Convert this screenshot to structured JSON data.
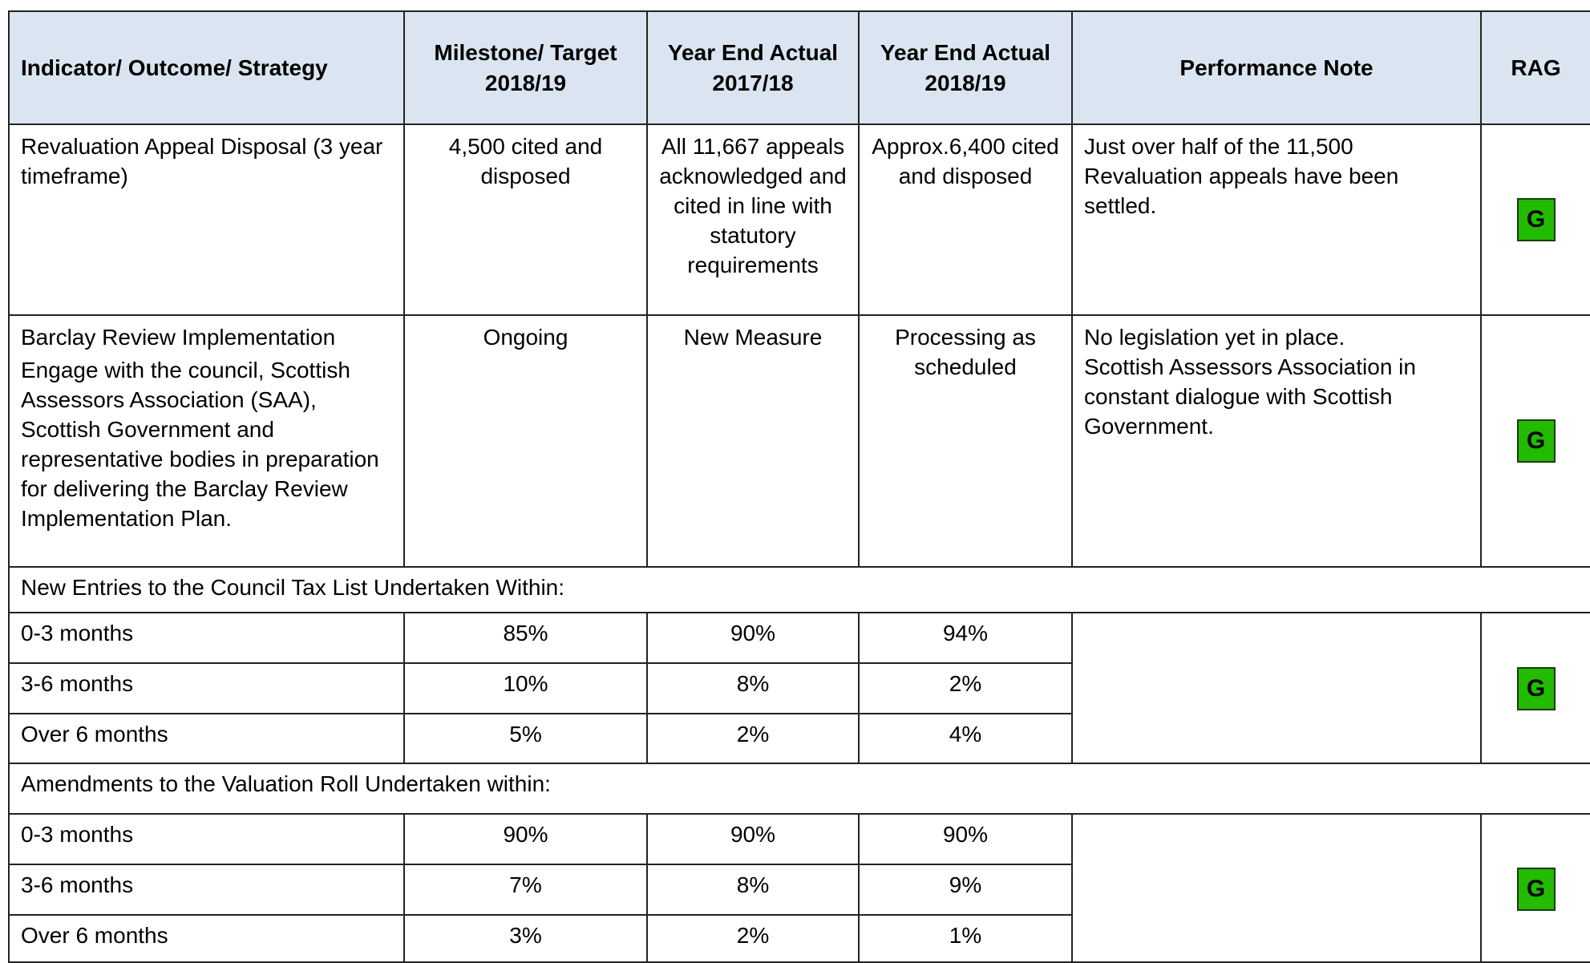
{
  "table": {
    "headers": [
      "Indicator/ Outcome/ Strategy",
      "Milestone/ Target 2018/19",
      "Year End Actual 2017/18",
      "Year End Actual 2018/19",
      "Performance Note",
      "RAG"
    ],
    "rows": [
      {
        "indicator": [
          "Revaluation Appeal Disposal (3 year timeframe)"
        ],
        "target": "4,500 cited and disposed",
        "actual_2017_18": "All 11,667 appeals acknowledged and cited in line with statutory requirements",
        "actual_2018_19": "Approx.6,400 cited and disposed",
        "note": [
          "Just over half of the 11,500 Revaluation appeals have been settled."
        ],
        "rag": "G"
      },
      {
        "indicator": [
          "Barclay Review Implementation",
          "Engage with the council, Scottish Assessors Association (SAA), Scottish Government and representative bodies in preparation for delivering the Barclay Review Implementation Plan."
        ],
        "target": "Ongoing",
        "actual_2017_18": "New Measure",
        "actual_2018_19": "Processing as scheduled",
        "note": [
          "No legislation yet in place.",
          "Scottish Assessors Association in constant dialogue with Scottish Government."
        ],
        "rag": "G"
      }
    ],
    "sections": [
      {
        "title": "New Entries to the Council Tax List Undertaken Within:",
        "rows": [
          [
            "0-3 months",
            "85%",
            "90%",
            "94%"
          ],
          [
            "3-6 months",
            "10%",
            "8%",
            "2%"
          ],
          [
            "Over 6 months",
            "5%",
            "2%",
            "4%"
          ]
        ],
        "rag": "G"
      },
      {
        "title": "Amendments to the Valuation Roll Undertaken within:",
        "rows": [
          [
            "0-3 months",
            "90%",
            "90%",
            "90%"
          ],
          [
            "3-6 months",
            "7%",
            "8%",
            "9%"
          ],
          [
            "Over 6 months",
            "3%",
            "2%",
            "1%"
          ]
        ],
        "rag": "G"
      }
    ]
  }
}
